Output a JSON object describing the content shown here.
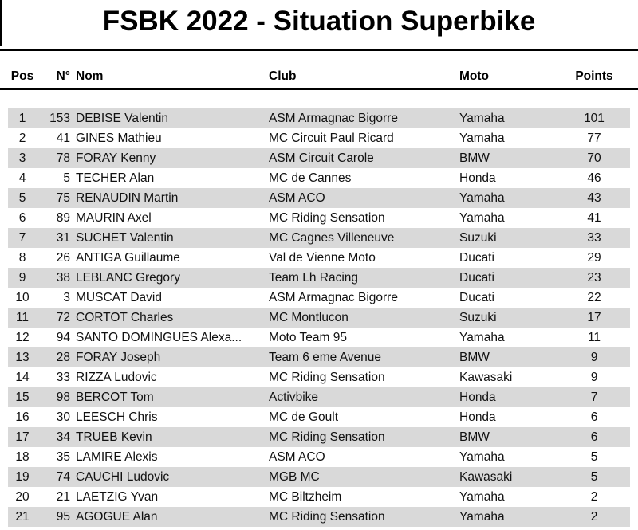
{
  "page": {
    "title": "FSBK 2022 - Situation Superbike"
  },
  "table": {
    "columns": [
      "Pos",
      "N°",
      "Nom",
      "Club",
      "Moto",
      "Points"
    ],
    "rows": [
      {
        "pos": "1",
        "num": "153",
        "name": "DEBISE Valentin",
        "club": "ASM Armagnac Bigorre",
        "moto": "Yamaha",
        "points": "101"
      },
      {
        "pos": "2",
        "num": "41",
        "name": "GINES Mathieu",
        "club": "MC Circuit Paul Ricard",
        "moto": "Yamaha",
        "points": "77"
      },
      {
        "pos": "3",
        "num": "78",
        "name": "FORAY Kenny",
        "club": "ASM Circuit Carole",
        "moto": "BMW",
        "points": "70"
      },
      {
        "pos": "4",
        "num": "5",
        "name": "TECHER Alan",
        "club": "MC de Cannes",
        "moto": "Honda",
        "points": "46"
      },
      {
        "pos": "5",
        "num": "75",
        "name": "RENAUDIN Martin",
        "club": "ASM ACO",
        "moto": "Yamaha",
        "points": "43"
      },
      {
        "pos": "6",
        "num": "89",
        "name": "MAURIN Axel",
        "club": "MC Riding Sensation",
        "moto": "Yamaha",
        "points": "41"
      },
      {
        "pos": "7",
        "num": "31",
        "name": "SUCHET Valentin",
        "club": "MC Cagnes Villeneuve",
        "moto": "Suzuki",
        "points": "33"
      },
      {
        "pos": "8",
        "num": "26",
        "name": "ANTIGA Guillaume",
        "club": "Val de Vienne Moto",
        "moto": "Ducati",
        "points": "29"
      },
      {
        "pos": "9",
        "num": "38",
        "name": "LEBLANC Gregory",
        "club": "Team Lh Racing",
        "moto": "Ducati",
        "points": "23"
      },
      {
        "pos": "10",
        "num": "3",
        "name": "MUSCAT David",
        "club": "ASM Armagnac Bigorre",
        "moto": "Ducati",
        "points": "22"
      },
      {
        "pos": "11",
        "num": "72",
        "name": "CORTOT Charles",
        "club": "MC Montlucon",
        "moto": "Suzuki",
        "points": "17"
      },
      {
        "pos": "12",
        "num": "94",
        "name": "SANTO DOMINGUES Alexa...",
        "club": "Moto Team 95",
        "moto": "Yamaha",
        "points": "11"
      },
      {
        "pos": "13",
        "num": "28",
        "name": "FORAY Joseph",
        "club": "Team 6 eme Avenue",
        "moto": "BMW",
        "points": "9"
      },
      {
        "pos": "14",
        "num": "33",
        "name": "RIZZA Ludovic",
        "club": "MC Riding Sensation",
        "moto": "Kawasaki",
        "points": "9"
      },
      {
        "pos": "15",
        "num": "98",
        "name": "BERCOT Tom",
        "club": "Activbike",
        "moto": "Honda",
        "points": "7"
      },
      {
        "pos": "16",
        "num": "30",
        "name": "LEESCH Chris",
        "club": "MC de Goult",
        "moto": "Honda",
        "points": "6"
      },
      {
        "pos": "17",
        "num": "34",
        "name": "TRUEB Kevin",
        "club": "MC Riding Sensation",
        "moto": "BMW",
        "points": "6"
      },
      {
        "pos": "18",
        "num": "35",
        "name": "LAMIRE Alexis",
        "club": "ASM ACO",
        "moto": "Yamaha",
        "points": "5"
      },
      {
        "pos": "19",
        "num": "74",
        "name": "CAUCHI Ludovic",
        "club": "MGB MC",
        "moto": "Kawasaki",
        "points": "5"
      },
      {
        "pos": "20",
        "num": "21",
        "name": "LAETZIG Yvan",
        "club": "MC Biltzheim",
        "moto": "Yamaha",
        "points": "2"
      },
      {
        "pos": "21",
        "num": "95",
        "name": "AGOGUE Alan",
        "club": "MC Riding Sensation",
        "moto": "Yamaha",
        "points": "2"
      }
    ]
  },
  "colors": {
    "stripe": "#d9d9d9",
    "text": "#111111",
    "rule": "#000000"
  }
}
